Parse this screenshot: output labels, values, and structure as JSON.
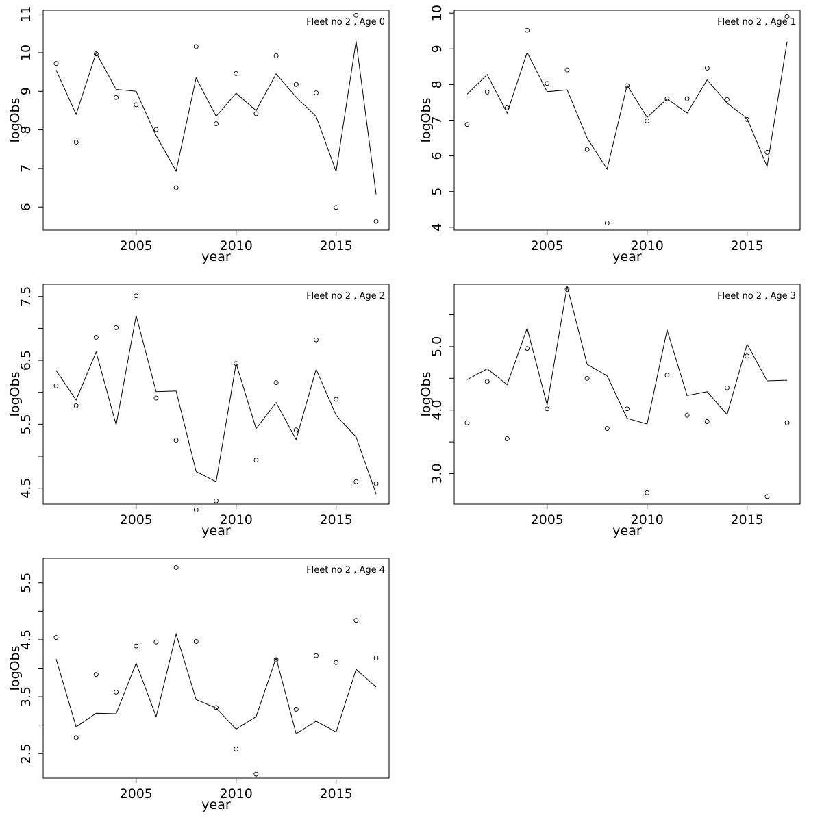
{
  "chart_data": [
    {
      "type": "line",
      "title": "Fleet no 2 , Age 0",
      "xlabel": "year",
      "ylabel": "logObs",
      "xlim": [
        2000.35,
        2017.65
      ],
      "ylim": [
        5.4,
        11.1
      ],
      "xticks": [
        2005,
        2010,
        2015
      ],
      "xtick_labels": [
        "2005",
        "2010",
        "2015"
      ],
      "yticks": [
        6,
        7,
        8,
        9,
        10,
        11
      ],
      "ytick_labels": [
        "6",
        "7",
        "8",
        "9",
        "10",
        "11"
      ],
      "x": [
        2001,
        2002,
        2003,
        2004,
        2005,
        2006,
        2007,
        2008,
        2009,
        2010,
        2011,
        2012,
        2013,
        2014,
        2015,
        2016,
        2017
      ],
      "series": [
        {
          "style": "line",
          "values": [
            9.55,
            8.4,
            10.0,
            9.05,
            9.0,
            7.85,
            6.93,
            9.35,
            8.35,
            8.95,
            8.5,
            9.45,
            8.85,
            8.35,
            6.92,
            10.3,
            6.33
          ]
        },
        {
          "style": "points",
          "values": [
            9.72,
            7.68,
            9.97,
            8.84,
            8.65,
            8.01,
            6.5,
            10.16,
            8.16,
            9.46,
            8.42,
            9.92,
            9.18,
            8.96,
            5.99,
            10.97,
            5.63
          ]
        }
      ]
    },
    {
      "type": "line",
      "title": "Fleet no 2 , Age 1",
      "xlabel": "year",
      "ylabel": "logObs",
      "xlim": [
        2000.35,
        2017.65
      ],
      "ylim": [
        3.92,
        10.08
      ],
      "xticks": [
        2005,
        2010,
        2015
      ],
      "xtick_labels": [
        "2005",
        "2010",
        "2015"
      ],
      "yticks": [
        4,
        5,
        6,
        7,
        8,
        9,
        10
      ],
      "ytick_labels": [
        "4",
        "5",
        "6",
        "7",
        "8",
        "9",
        "10"
      ],
      "x": [
        2001,
        2002,
        2003,
        2004,
        2005,
        2006,
        2007,
        2008,
        2009,
        2010,
        2011,
        2012,
        2013,
        2014,
        2015,
        2016,
        2017
      ],
      "series": [
        {
          "style": "line",
          "values": [
            7.73,
            8.28,
            7.2,
            8.9,
            7.8,
            7.85,
            6.5,
            5.63,
            7.98,
            7.08,
            7.6,
            7.2,
            8.13,
            7.48,
            7.05,
            5.7,
            9.2
          ]
        },
        {
          "style": "points",
          "values": [
            6.88,
            7.79,
            7.35,
            9.52,
            8.03,
            8.41,
            6.18,
            4.12,
            7.97,
            6.98,
            7.6,
            7.6,
            8.46,
            7.58,
            7.02,
            6.1,
            9.9
          ]
        }
      ]
    },
    {
      "type": "line",
      "title": "Fleet no 2 , Age 2",
      "xlabel": "year",
      "ylabel": "logObs",
      "xlim": [
        2000.35,
        2017.65
      ],
      "ylim": [
        4.25,
        7.69
      ],
      "xticks": [
        2005,
        2010,
        2015
      ],
      "xtick_labels": [
        "2005",
        "2010",
        "2015"
      ],
      "yticks": [
        4.5,
        5.0,
        5.5,
        6.0,
        6.5,
        7.0,
        7.5
      ],
      "ytick_labels": [
        "4.5",
        "",
        "5.5",
        "",
        "6.5",
        "",
        "7.5"
      ],
      "x": [
        2001,
        2002,
        2003,
        2004,
        2005,
        2006,
        2007,
        2008,
        2009,
        2010,
        2011,
        2012,
        2013,
        2014,
        2015,
        2016,
        2017
      ],
      "series": [
        {
          "style": "line",
          "values": [
            6.34,
            5.88,
            6.63,
            5.49,
            7.2,
            6.01,
            6.02,
            4.76,
            4.6,
            6.45,
            5.43,
            5.84,
            5.26,
            6.36,
            5.64,
            5.3,
            4.41
          ]
        },
        {
          "style": "points",
          "values": [
            6.1,
            5.79,
            6.86,
            7.01,
            7.51,
            5.91,
            5.25,
            4.16,
            4.3,
            6.45,
            4.94,
            6.15,
            5.41,
            6.82,
            5.89,
            4.6,
            4.57
          ]
        }
      ]
    },
    {
      "type": "line",
      "title": "Fleet no 2 , Age 3",
      "xlabel": "year",
      "ylabel": "logObs",
      "xlim": [
        2000.35,
        2017.65
      ],
      "ylim": [
        2.52,
        5.98
      ],
      "xticks": [
        2005,
        2010,
        2015
      ],
      "xtick_labels": [
        "2005",
        "2010",
        "2015"
      ],
      "yticks": [
        3.0,
        3.5,
        4.0,
        4.5,
        5.0,
        5.5
      ],
      "ytick_labels": [
        "3.0",
        "",
        "4.0",
        "",
        "5.0",
        ""
      ],
      "x": [
        2001,
        2002,
        2003,
        2004,
        2005,
        2006,
        2007,
        2008,
        2009,
        2010,
        2011,
        2012,
        2013,
        2014,
        2015,
        2016,
        2017
      ],
      "series": [
        {
          "style": "line",
          "values": [
            4.48,
            4.65,
            4.4,
            5.29,
            4.08,
            5.95,
            4.72,
            4.54,
            3.87,
            3.78,
            5.26,
            4.23,
            4.29,
            3.93,
            5.04,
            4.46,
            4.47
          ]
        },
        {
          "style": "points",
          "values": [
            3.8,
            4.45,
            3.55,
            4.97,
            4.02,
            5.9,
            4.5,
            3.71,
            4.02,
            2.7,
            4.55,
            3.92,
            3.82,
            4.35,
            4.85,
            2.64,
            3.8
          ]
        }
      ]
    },
    {
      "type": "line",
      "title": "Fleet no 2 , Age 4",
      "xlabel": "year",
      "ylabel": "logObs",
      "xlim": [
        2000.35,
        2017.65
      ],
      "ylim": [
        2.07,
        5.93
      ],
      "xticks": [
        2005,
        2010,
        2015
      ],
      "xtick_labels": [
        "2005",
        "2010",
        "2015"
      ],
      "yticks": [
        2.5,
        3.0,
        3.5,
        4.0,
        4.5,
        5.0,
        5.5
      ],
      "ytick_labels": [
        "2.5",
        "",
        "3.5",
        "",
        "4.5",
        "",
        "5.5"
      ],
      "x": [
        2001,
        2002,
        2003,
        2004,
        2005,
        2006,
        2007,
        2008,
        2009,
        2010,
        2011,
        2012,
        2013,
        2014,
        2015,
        2016,
        2017
      ],
      "series": [
        {
          "style": "line",
          "values": [
            4.16,
            2.97,
            3.21,
            3.2,
            4.09,
            3.15,
            4.6,
            3.45,
            3.3,
            2.93,
            3.15,
            4.18,
            2.85,
            3.07,
            2.88,
            3.98,
            3.67
          ]
        },
        {
          "style": "points",
          "values": [
            4.54,
            2.78,
            3.89,
            3.58,
            4.39,
            4.46,
            5.77,
            4.47,
            3.31,
            2.58,
            2.14,
            4.15,
            3.28,
            4.22,
            4.1,
            4.84,
            4.18
          ]
        }
      ]
    }
  ]
}
